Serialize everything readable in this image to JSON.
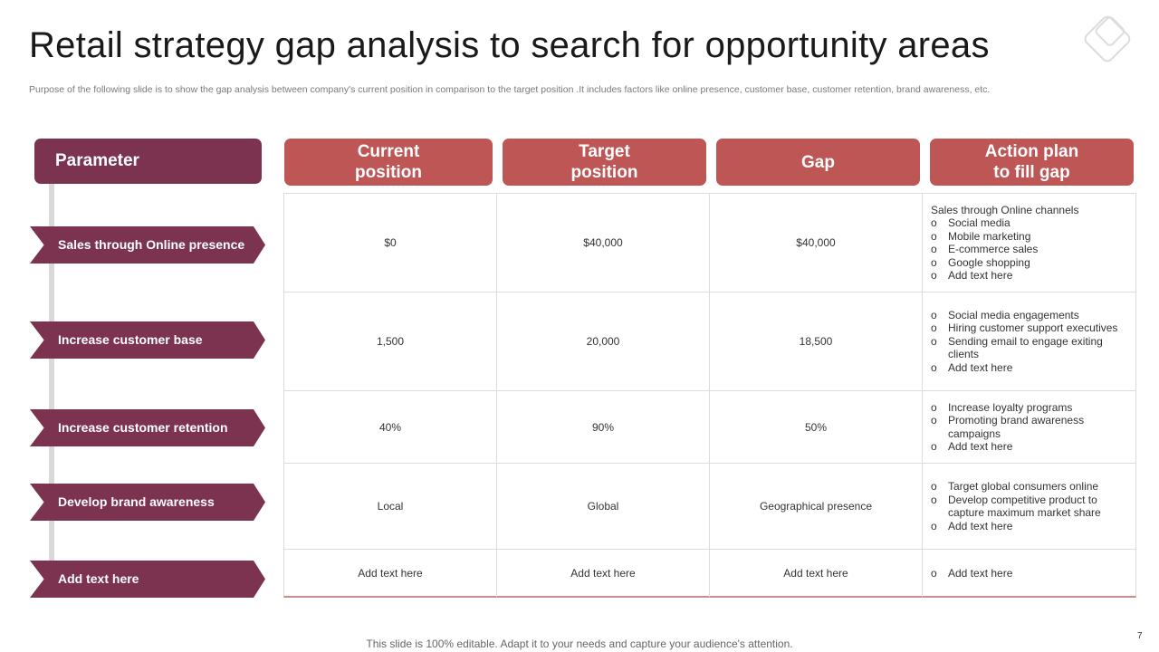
{
  "title": "Retail strategy gap analysis to search for opportunity areas",
  "subtitle": "Purpose of the following slide is to show the gap analysis between company's current position in comparison to the target position .It includes factors like online presence, customer base, customer retention, brand awareness, etc.",
  "parameter_header": "Parameter",
  "column_headers": {
    "current": "Current position",
    "target": "Target position",
    "gap": "Gap",
    "action": "Action plan to fill gap"
  },
  "rows": [
    {
      "parameter": "Sales through Online presence",
      "current": "$0",
      "target": "$40,000",
      "gap": "$40,000",
      "action_intro": "Sales through Online channels",
      "action_items": [
        "Social media",
        "Mobile marketing",
        "E-commerce sales",
        "Google shopping",
        "Add text here"
      ]
    },
    {
      "parameter": "Increase customer base",
      "current": "1,500",
      "target": "20,000",
      "gap": "18,500",
      "action_intro": "",
      "action_items": [
        "Social media engagements",
        "Hiring customer support executives",
        "Sending email to engage exiting clients",
        "Add text here"
      ]
    },
    {
      "parameter": "Increase customer retention",
      "current": "40%",
      "target": "90%",
      "gap": "50%",
      "action_intro": "",
      "action_items": [
        "Increase loyalty programs",
        "Promoting brand awareness campaigns",
        "Add text here"
      ]
    },
    {
      "parameter": "Develop brand awareness",
      "current": "Local",
      "target": "Global",
      "gap": "Geographical presence",
      "action_intro": "",
      "action_items": [
        "Target global consumers online",
        "Develop competitive product to capture maximum market share",
        "Add text here"
      ]
    },
    {
      "parameter": "Add text here",
      "current": "Add text here",
      "target": "Add text here",
      "gap": "Add text here",
      "action_intro": "",
      "action_items": [
        "Add text here"
      ]
    }
  ],
  "bullet_marker": "o",
  "footer": "This slide is 100% editable. Adapt it to your needs and capture your audience's attention.",
  "page_number": "7",
  "colors": {
    "parameter": "#7b3350",
    "header": "#bf5656"
  }
}
